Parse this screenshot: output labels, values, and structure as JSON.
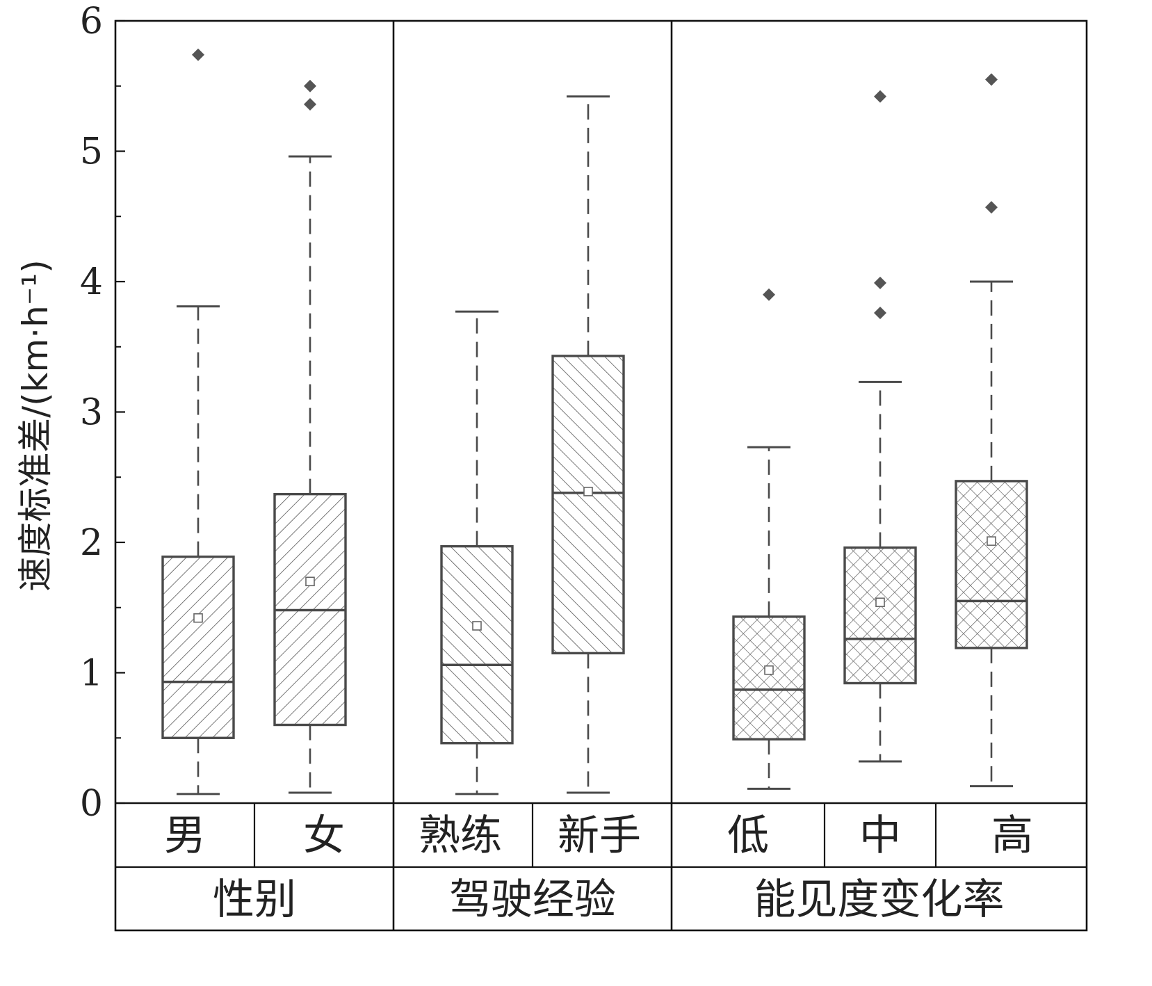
{
  "chart_data": {
    "type": "box",
    "ylabel": "速度标准差/(km·h⁻¹)",
    "ylim": [
      0,
      6
    ],
    "yticks": [
      0,
      1,
      2,
      3,
      4,
      5,
      6
    ],
    "grid": false,
    "groups": [
      {
        "label": "性别",
        "hatch": "forward",
        "categories": [
          {
            "label": "男",
            "min": 0.07,
            "q1": 0.5,
            "median": 0.93,
            "q3": 1.89,
            "max": 3.81,
            "mean": 1.42,
            "outliers": [
              5.74
            ]
          },
          {
            "label": "女",
            "min": 0.08,
            "q1": 0.6,
            "median": 1.48,
            "q3": 2.37,
            "max": 4.96,
            "mean": 1.7,
            "outliers": [
              5.5,
              5.36
            ]
          }
        ]
      },
      {
        "label": "驾驶经验",
        "hatch": "back",
        "categories": [
          {
            "label": "熟练",
            "min": 0.07,
            "q1": 0.46,
            "median": 1.06,
            "q3": 1.97,
            "max": 3.77,
            "mean": 1.36,
            "outliers": []
          },
          {
            "label": "新手",
            "min": 0.08,
            "q1": 1.15,
            "median": 2.38,
            "q3": 3.43,
            "max": 5.42,
            "mean": 2.39,
            "outliers": []
          }
        ]
      },
      {
        "label": "能见度变化率",
        "hatch": "cross",
        "categories": [
          {
            "label": "低",
            "min": 0.11,
            "q1": 0.49,
            "median": 0.87,
            "q3": 1.43,
            "max": 2.73,
            "mean": 1.02,
            "outliers": [
              3.9
            ]
          },
          {
            "label": "中",
            "min": 0.32,
            "q1": 0.92,
            "median": 1.26,
            "q3": 1.96,
            "max": 3.23,
            "mean": 1.54,
            "outliers": [
              5.42,
              3.99,
              3.76
            ]
          },
          {
            "label": "高",
            "min": 0.13,
            "q1": 1.19,
            "median": 1.55,
            "q3": 2.47,
            "max": 4.0,
            "mean": 2.01,
            "outliers": [
              5.55,
              4.57
            ]
          }
        ]
      }
    ]
  },
  "colors": {
    "stroke": "#4a4a4a",
    "frame": "#111111",
    "box_fill": "#ffffff",
    "outlier": "#555555"
  }
}
